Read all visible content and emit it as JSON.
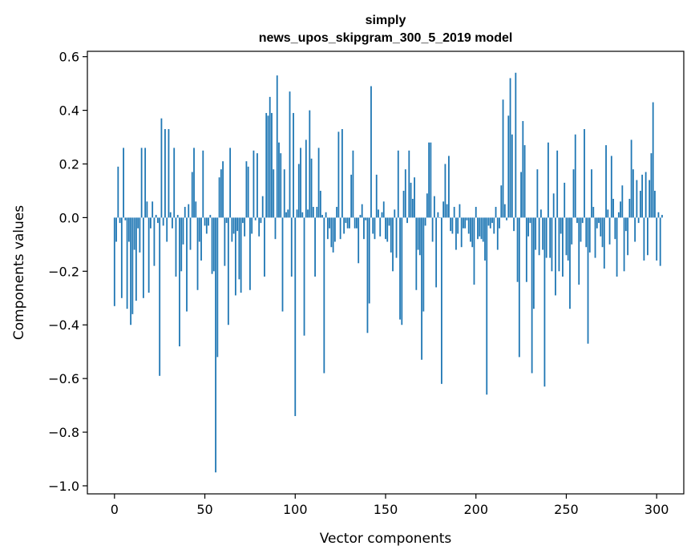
{
  "chart_data": {
    "type": "bar",
    "title_line1": "simply",
    "title_line2": "news_upos_skipgram_300_5_2019 model",
    "xlabel": "Vector components",
    "ylabel": "Components values",
    "xlim": [
      -15,
      315
    ],
    "ylim": [
      -1.03,
      0.62
    ],
    "xticks": [
      0,
      50,
      100,
      150,
      200,
      250,
      300
    ],
    "yticks": [
      0.6,
      0.4,
      0.2,
      0.0,
      -0.2,
      -0.4,
      -0.6,
      -0.8,
      -1.0
    ],
    "ytick_labels": [
      "0.6",
      "0.4",
      "0.2",
      "0.0",
      "−0.2",
      "−0.4",
      "−0.6",
      "−0.8",
      "−1.0"
    ],
    "bar_color": "#1f77b4",
    "values": [
      -0.33,
      -0.09,
      0.19,
      -0.02,
      -0.3,
      0.26,
      -0.01,
      -0.34,
      -0.09,
      -0.4,
      -0.36,
      -0.12,
      -0.31,
      -0.04,
      -0.13,
      0.26,
      -0.3,
      0.26,
      0.06,
      -0.28,
      -0.04,
      0.06,
      -0.18,
      0.01,
      -0.02,
      -0.59,
      0.37,
      -0.03,
      0.33,
      -0.09,
      0.33,
      0.02,
      -0.04,
      0.26,
      -0.22,
      0.01,
      -0.48,
      -0.2,
      -0.1,
      0.04,
      -0.35,
      0.05,
      -0.12,
      0.17,
      0.26,
      0.06,
      -0.27,
      -0.09,
      -0.16,
      0.25,
      -0.03,
      -0.06,
      -0.03,
      0.01,
      -0.21,
      -0.2,
      -0.95,
      -0.52,
      0.15,
      0.18,
      0.21,
      -0.18,
      -0.02,
      -0.4,
      0.26,
      -0.09,
      -0.06,
      -0.29,
      -0.05,
      -0.23,
      -0.28,
      -0.02,
      -0.07,
      0.21,
      0.19,
      -0.27,
      -0.06,
      0.25,
      -0.01,
      0.24,
      -0.07,
      -0.02,
      0.08,
      -0.22,
      0.39,
      0.38,
      0.45,
      0.39,
      0.18,
      -0.08,
      0.53,
      0.28,
      0.24,
      -0.35,
      0.18,
      0.02,
      0.03,
      0.47,
      -0.22,
      0.39,
      -0.74,
      0.03,
      0.2,
      0.26,
      0.02,
      -0.44,
      0.29,
      0.03,
      0.4,
      0.22,
      0.04,
      -0.22,
      0.04,
      0.26,
      0.1,
      0.01,
      -0.58,
      0.02,
      -0.08,
      -0.04,
      -0.11,
      -0.13,
      -0.09,
      0.04,
      0.32,
      -0.08,
      0.33,
      -0.06,
      -0.02,
      -0.04,
      -0.04,
      0.16,
      0.25,
      -0.04,
      -0.04,
      -0.17,
      0.01,
      0.05,
      -0.08,
      -0.01,
      -0.43,
      -0.32,
      0.49,
      -0.06,
      -0.08,
      0.16,
      0.03,
      -0.07,
      0.02,
      0.06,
      -0.08,
      -0.09,
      -0.03,
      -0.13,
      -0.2,
      0.03,
      -0.15,
      0.25,
      -0.38,
      -0.4,
      0.1,
      0.18,
      -0.02,
      0.25,
      0.13,
      0.07,
      0.15,
      -0.27,
      -0.12,
      -0.14,
      -0.53,
      -0.35,
      -0.03,
      0.09,
      0.28,
      0.28,
      -0.09,
      0.08,
      -0.26,
      0.02,
      0.0,
      -0.62,
      0.06,
      0.2,
      0.05,
      0.23,
      -0.05,
      -0.06,
      0.04,
      -0.12,
      -0.06,
      0.05,
      -0.11,
      -0.04,
      -0.04,
      -0.01,
      -0.06,
      -0.09,
      -0.11,
      -0.25,
      0.04,
      -0.08,
      -0.07,
      -0.08,
      -0.09,
      -0.16,
      -0.66,
      -0.03,
      -0.04,
      -0.02,
      -0.06,
      0.04,
      -0.12,
      -0.04,
      0.12,
      0.44,
      0.05,
      -0.01,
      0.38,
      0.52,
      0.31,
      -0.05,
      0.54,
      -0.24,
      -0.52,
      0.17,
      0.36,
      0.27,
      -0.24,
      -0.07,
      -0.02,
      -0.58,
      -0.34,
      -0.12,
      0.18,
      -0.14,
      0.03,
      -0.12,
      -0.63,
      -0.15,
      0.28,
      -0.15,
      -0.2,
      0.09,
      -0.29,
      0.25,
      -0.2,
      -0.06,
      -0.22,
      0.13,
      -0.14,
      -0.16,
      -0.34,
      -0.1,
      0.18,
      0.31,
      -0.02,
      -0.25,
      -0.09,
      -0.02,
      0.33,
      -0.11,
      -0.47,
      -0.13,
      0.18,
      0.04,
      -0.15,
      -0.04,
      -0.02,
      -0.07,
      -0.11,
      -0.19,
      0.27,
      0.03,
      -0.1,
      0.23,
      0.07,
      -0.08,
      -0.22,
      0.02,
      0.06,
      0.12,
      -0.2,
      -0.05,
      -0.14,
      0.07,
      0.29,
      0.18,
      -0.09,
      0.14,
      -0.02,
      0.1,
      0.16,
      -0.16,
      0.17,
      -0.14,
      0.14,
      0.24,
      0.43,
      0.1,
      -0.16,
      0.02,
      -0.18,
      0.01
    ]
  }
}
